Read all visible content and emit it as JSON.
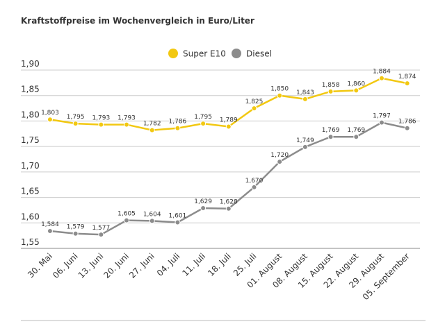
{
  "chart_data": {
    "type": "line",
    "title": "Kraftstoffpreise im Wochenvergleich in Euro/Liter",
    "categories": [
      "30. Mai",
      "06. Juni",
      "13. Juni",
      "20. Juni",
      "27. Juni",
      "04. Juli",
      "11. Juli",
      "18. Juli",
      "25. Juli",
      "01. August",
      "08. August",
      "15. August",
      "22. August",
      "29. August",
      "05. September"
    ],
    "series": [
      {
        "name": "Super E10",
        "color": "#f2c811",
        "values": [
          1.803,
          1.795,
          1.793,
          1.793,
          1.782,
          1.786,
          1.795,
          1.789,
          1.825,
          1.85,
          1.843,
          1.858,
          1.86,
          1.884,
          1.874
        ],
        "value_labels": [
          "1,803",
          "1,795",
          "1,793",
          "1,793",
          "1,782",
          "1,786",
          "1,795",
          "1,789",
          "1,825",
          "1,850",
          "1,843",
          "1,858",
          "1,860",
          "1,884",
          "1,874"
        ]
      },
      {
        "name": "Diesel",
        "color": "#8c8c8c",
        "values": [
          1.584,
          1.579,
          1.577,
          1.605,
          1.604,
          1.601,
          1.629,
          1.628,
          1.67,
          1.72,
          1.749,
          1.769,
          1.769,
          1.797,
          1.786
        ],
        "value_labels": [
          "1,584",
          "1,579",
          "1,577",
          "1,605",
          "1,604",
          "1,601",
          "1,629",
          "1,628",
          "1,670",
          "1,720",
          "1,749",
          "1,769",
          "1,769",
          "1,797",
          "1,786"
        ]
      }
    ],
    "ylim": [
      1.55,
      1.9
    ],
    "yticks": [
      {
        "value": 1.55,
        "label": "1,55"
      },
      {
        "value": 1.6,
        "label": "1,60"
      },
      {
        "value": 1.65,
        "label": "1,65"
      },
      {
        "value": 1.7,
        "label": "1,70"
      },
      {
        "value": 1.75,
        "label": "1,75"
      },
      {
        "value": 1.8,
        "label": "1,80"
      },
      {
        "value": 1.85,
        "label": "1,85"
      },
      {
        "value": 1.9,
        "label": "1,90"
      }
    ],
    "grid": true,
    "legend": "top"
  }
}
